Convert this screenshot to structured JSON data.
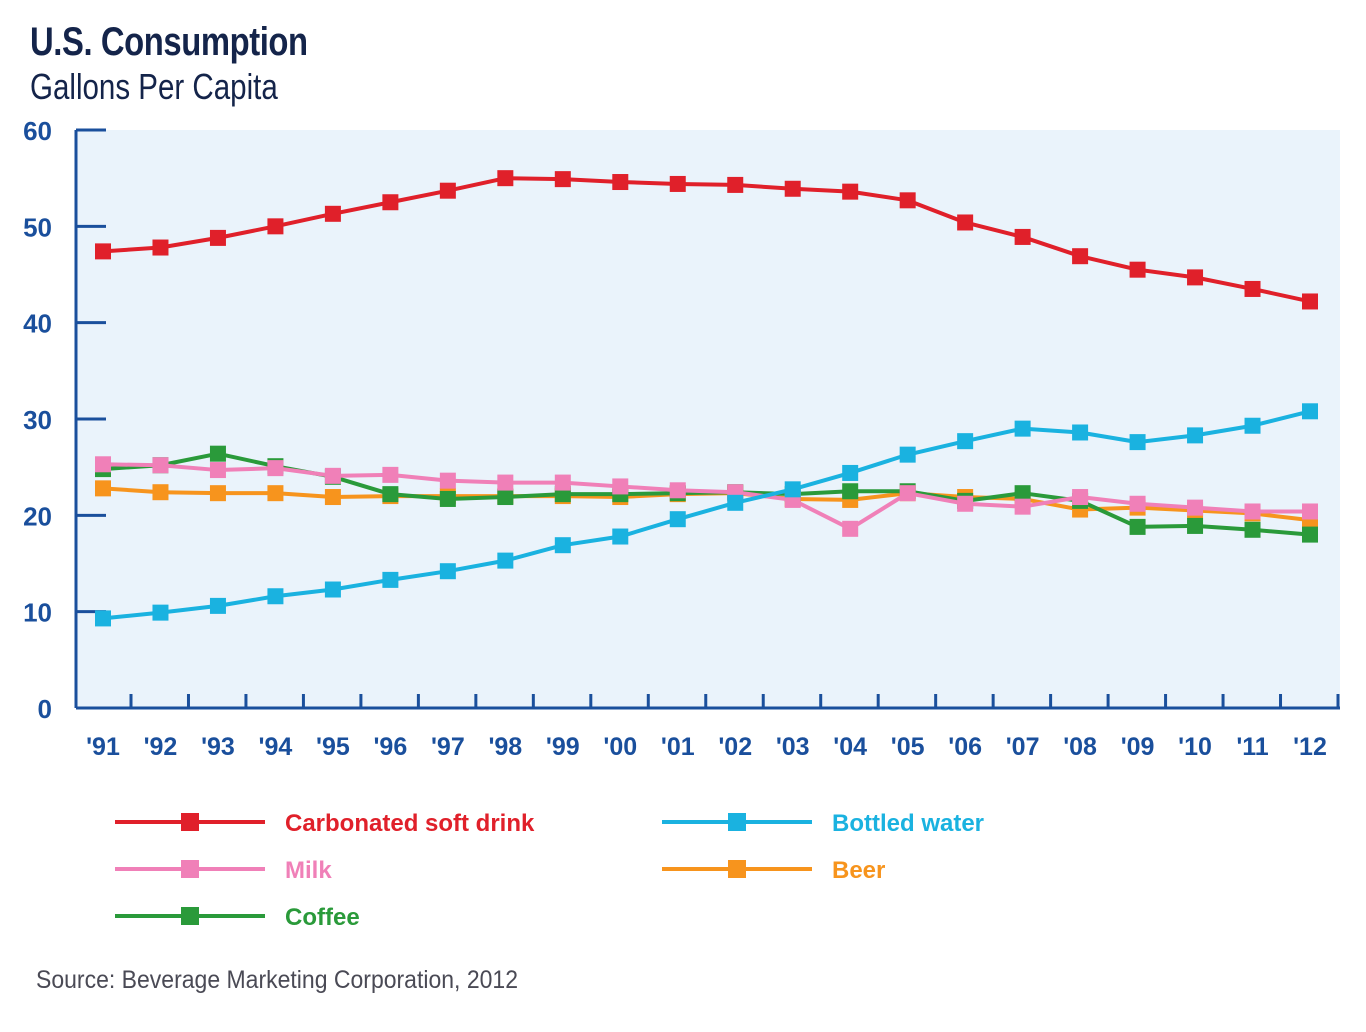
{
  "chart_data": {
    "type": "line",
    "title": "U.S. Consumption",
    "subtitle": "Gallons Per Capita",
    "source": "Source: Beverage Marketing Corporation, 2012",
    "xlabel": "",
    "ylabel": "",
    "x": [
      "'91",
      "'92",
      "'93",
      "'94",
      "'95",
      "'96",
      "'97",
      "'98",
      "'99",
      "'00",
      "'01",
      "'02",
      "'03",
      "'04",
      "'05",
      "'06",
      "'07",
      "'08",
      "'09",
      "'10",
      "'11",
      "'12"
    ],
    "ylim": [
      0,
      60
    ],
    "yticks": [
      "0",
      "10",
      "20",
      "30",
      "40",
      "50",
      "60"
    ],
    "grid": false,
    "legend_position": "bottom",
    "series": [
      {
        "name": "Carbonated soft drink",
        "color": "#e0202a",
        "values": [
          47.4,
          47.8,
          48.8,
          50.0,
          51.3,
          52.5,
          53.7,
          55.0,
          54.9,
          54.6,
          54.4,
          54.3,
          53.9,
          53.6,
          52.7,
          50.4,
          48.9,
          46.9,
          45.5,
          44.7,
          43.5,
          42.2
        ]
      },
      {
        "name": "Bottled water",
        "color": "#1ab2e0",
        "values": [
          9.3,
          9.9,
          10.6,
          11.6,
          12.3,
          13.3,
          14.2,
          15.3,
          16.9,
          17.8,
          19.6,
          21.3,
          22.7,
          24.4,
          26.3,
          27.7,
          29.0,
          28.6,
          27.6,
          28.3,
          29.3,
          30.8
        ]
      },
      {
        "name": "Milk",
        "color": "#f080b8",
        "values": [
          25.3,
          25.2,
          24.7,
          24.9,
          24.1,
          24.2,
          23.6,
          23.4,
          23.4,
          23.0,
          22.6,
          22.4,
          21.6,
          18.6,
          22.3,
          21.2,
          20.9,
          21.9,
          21.2,
          20.8,
          20.4,
          20.4
        ]
      },
      {
        "name": "Beer",
        "color": "#f7941d",
        "values": [
          22.8,
          22.4,
          22.3,
          22.3,
          21.9,
          22.0,
          22.0,
          22.0,
          22.0,
          21.9,
          22.2,
          22.3,
          21.7,
          21.6,
          22.3,
          21.9,
          21.7,
          20.6,
          20.8,
          20.5,
          20.2,
          19.5
        ]
      },
      {
        "name": "Coffee",
        "color": "#2a9a3a",
        "values": [
          24.8,
          25.2,
          26.4,
          25.1,
          24.0,
          22.2,
          21.7,
          21.9,
          22.2,
          22.2,
          22.3,
          22.4,
          22.2,
          22.5,
          22.5,
          21.5,
          22.3,
          21.5,
          18.8,
          18.9,
          18.5,
          18.0
        ]
      }
    ]
  }
}
